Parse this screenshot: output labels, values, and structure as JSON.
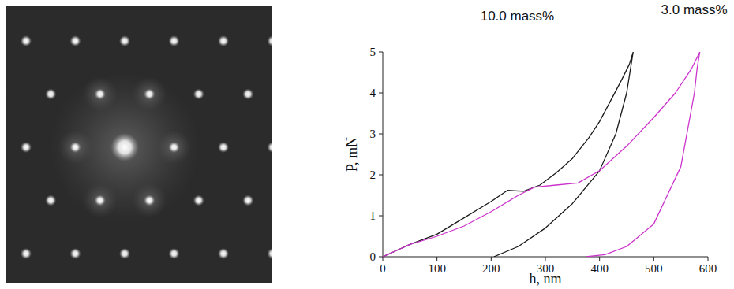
{
  "chart_data": {
    "type": "line",
    "x_label": "h, nm",
    "y_label": "P, mN",
    "xlim": [
      0,
      600
    ],
    "ylim": [
      0,
      5
    ],
    "xticks": [
      0,
      100,
      200,
      300,
      400,
      500,
      600
    ],
    "yticks": [
      0,
      1,
      2,
      3,
      4,
      5
    ],
    "grid": false,
    "series": [
      {
        "name": "10.0 mass%",
        "color": "#1a1a1a",
        "x": [
          0,
          50,
          100,
          150,
          200,
          230,
          260,
          290,
          320,
          350,
          380,
          400,
          420,
          440,
          455,
          462,
          450,
          430,
          400,
          350,
          300,
          250,
          205
        ],
        "values": [
          0,
          0.3,
          0.55,
          0.95,
          1.35,
          1.62,
          1.6,
          1.75,
          2.05,
          2.4,
          2.9,
          3.3,
          3.8,
          4.3,
          4.7,
          5.0,
          4.0,
          3.0,
          2.1,
          1.3,
          0.7,
          0.25,
          0
        ]
      },
      {
        "name": "3.0 mass%",
        "color": "#cc33cc",
        "x": [
          0,
          50,
          100,
          150,
          200,
          250,
          280,
          320,
          360,
          400,
          450,
          500,
          540,
          570,
          585,
          580,
          575,
          550,
          500,
          450,
          410,
          375
        ],
        "values": [
          0,
          0.3,
          0.5,
          0.75,
          1.1,
          1.5,
          1.7,
          1.75,
          1.8,
          2.1,
          2.7,
          3.4,
          4.0,
          4.6,
          5.0,
          4.6,
          4.0,
          2.2,
          0.8,
          0.25,
          0.05,
          0
        ]
      }
    ]
  }
}
